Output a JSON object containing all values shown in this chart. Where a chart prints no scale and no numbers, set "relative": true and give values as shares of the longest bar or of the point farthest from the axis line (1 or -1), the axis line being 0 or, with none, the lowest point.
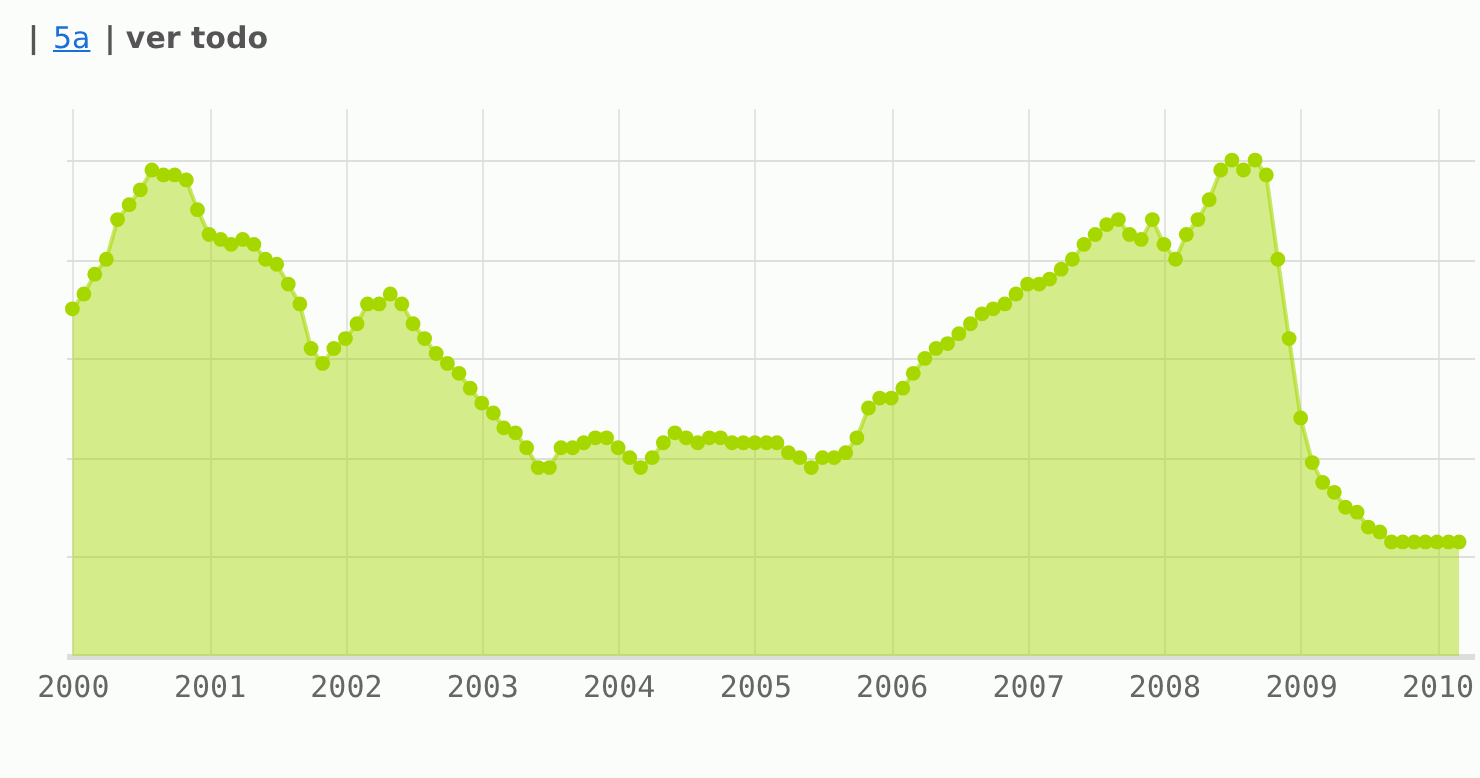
{
  "chart_data": {
    "type": "area",
    "relative": true,
    "marker": "circle",
    "grid": true,
    "annotations": [
      "|",
      "5a",
      "| ver todo"
    ],
    "xlim": [
      "1999-12-15",
      "2010-04-10"
    ],
    "xticks": [
      {
        "value": "2000",
        "label": "2000"
      },
      {
        "value": "2001",
        "label": "2001"
      },
      {
        "value": "2002",
        "label": "2002"
      },
      {
        "value": "2003",
        "label": "2003"
      },
      {
        "value": "2004",
        "label": "2004"
      },
      {
        "value": "2005",
        "label": "2005"
      },
      {
        "value": "2006",
        "label": "2006"
      },
      {
        "value": "2007",
        "label": "2007"
      },
      {
        "value": "2008",
        "label": "2008"
      },
      {
        "value": "2009",
        "label": "2009"
      },
      {
        "value": "2010",
        "label": "2010"
      }
    ],
    "x": [
      "2000-01",
      "2000-02",
      "2000-03",
      "2000-04",
      "2000-05",
      "2000-06",
      "2000-07",
      "2000-08",
      "2000-09",
      "2000-10",
      "2000-11",
      "2000-12",
      "2001-01",
      "2001-02",
      "2001-03",
      "2001-04",
      "2001-05",
      "2001-06",
      "2001-07",
      "2001-08",
      "2001-09",
      "2001-10",
      "2001-11",
      "2001-12",
      "2002-01",
      "2002-02",
      "2002-03",
      "2002-04",
      "2002-05",
      "2002-06",
      "2002-07",
      "2002-08",
      "2002-09",
      "2002-10",
      "2002-11",
      "2002-12",
      "2003-01",
      "2003-02",
      "2003-03",
      "2003-04",
      "2003-05",
      "2003-06",
      "2003-07",
      "2003-08",
      "2003-09",
      "2003-10",
      "2003-11",
      "2003-12",
      "2004-01",
      "2004-02",
      "2004-03",
      "2004-04",
      "2004-05",
      "2004-06",
      "2004-07",
      "2004-08",
      "2004-09",
      "2004-10",
      "2004-11",
      "2004-12",
      "2005-01",
      "2005-02",
      "2005-03",
      "2005-04",
      "2005-05",
      "2005-06",
      "2005-07",
      "2005-08",
      "2005-09",
      "2005-10",
      "2005-11",
      "2005-12",
      "2006-01",
      "2006-02",
      "2006-03",
      "2006-04",
      "2006-05",
      "2006-06",
      "2006-07",
      "2006-08",
      "2006-09",
      "2006-10",
      "2006-11",
      "2006-12",
      "2007-01",
      "2007-02",
      "2007-03",
      "2007-04",
      "2007-05",
      "2007-06",
      "2007-07",
      "2007-08",
      "2007-09",
      "2007-10",
      "2007-11",
      "2007-12",
      "2008-01",
      "2008-02",
      "2008-03",
      "2008-04",
      "2008-05",
      "2008-06",
      "2008-07",
      "2008-08",
      "2008-09",
      "2008-10",
      "2008-11",
      "2008-12",
      "2009-01",
      "2009-02",
      "2009-03",
      "2009-04",
      "2009-05",
      "2009-06",
      "2009-07",
      "2009-08",
      "2009-09",
      "2009-10",
      "2009-11",
      "2009-12",
      "2010-01",
      "2010-02",
      "2010-03"
    ],
    "series": [
      {
        "color": "#a6d800",
        "values": [
          0.7,
          0.73,
          0.77,
          0.8,
          0.88,
          0.91,
          0.94,
          0.98,
          0.97,
          0.97,
          0.96,
          0.9,
          0.85,
          0.84,
          0.83,
          0.84,
          0.83,
          0.8,
          0.79,
          0.75,
          0.71,
          0.62,
          0.59,
          0.62,
          0.64,
          0.67,
          0.71,
          0.71,
          0.73,
          0.71,
          0.67,
          0.64,
          0.61,
          0.59,
          0.57,
          0.54,
          0.51,
          0.49,
          0.46,
          0.45,
          0.42,
          0.38,
          0.38,
          0.42,
          0.42,
          0.43,
          0.44,
          0.44,
          0.42,
          0.4,
          0.38,
          0.4,
          0.43,
          0.45,
          0.44,
          0.43,
          0.44,
          0.44,
          0.43,
          0.43,
          0.43,
          0.43,
          0.43,
          0.41,
          0.4,
          0.38,
          0.4,
          0.4,
          0.41,
          0.44,
          0.5,
          0.52,
          0.52,
          0.54,
          0.57,
          0.6,
          0.62,
          0.63,
          0.65,
          0.67,
          0.69,
          0.7,
          0.71,
          0.73,
          0.75,
          0.75,
          0.76,
          0.78,
          0.8,
          0.83,
          0.85,
          0.87,
          0.88,
          0.85,
          0.84,
          0.88,
          0.83,
          0.8,
          0.85,
          0.88,
          0.92,
          0.98,
          1,
          0.98,
          1,
          0.97,
          0.8,
          0.64,
          0.48,
          0.39,
          0.35,
          0.33,
          0.3,
          0.29,
          0.26,
          0.25,
          0.23,
          0.23,
          0.23,
          0.23,
          0.23,
          0.23,
          0.23
        ]
      }
    ]
  }
}
